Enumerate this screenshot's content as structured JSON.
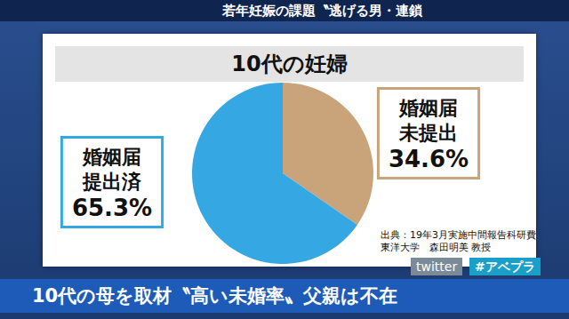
{
  "chart_data": {
    "type": "pie",
    "title": "10代の妊婦",
    "categories": [
      "婚姻届\n未提出",
      "婚姻届\n提出済"
    ],
    "values": [
      34.6,
      65.3
    ],
    "value_labels": [
      "34.6%",
      "65.3%"
    ],
    "colors": [
      "#c9a47a",
      "#35a7e2"
    ],
    "data_labels": true,
    "annotations": [
      "出典：19年3月実施中間報告科研費\n東洋大学　森田明美 教授",
      "若年妊娠の課題〝逃げる男・連鎖",
      "10代の母を取材〝高い未婚率〟父親は不在",
      "twitter",
      "#アベプラ"
    ]
  }
}
